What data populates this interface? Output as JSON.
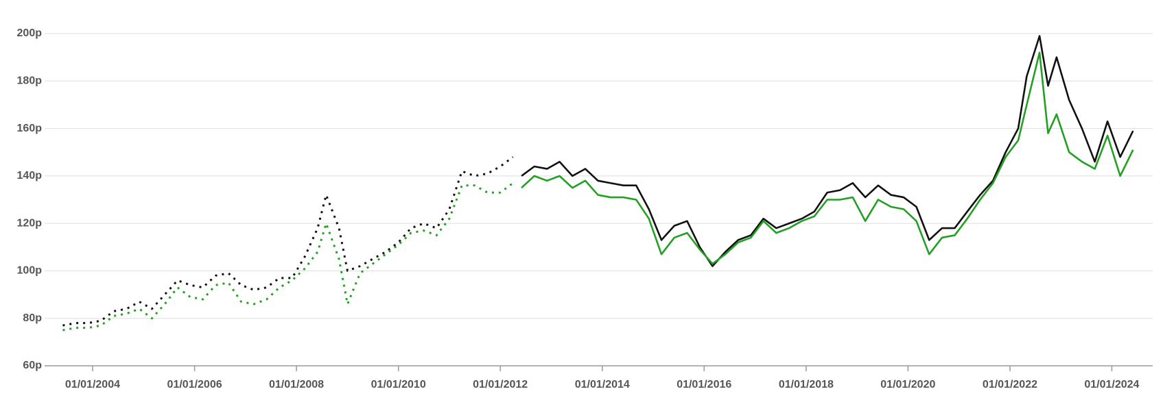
{
  "chart_data": {
    "type": "line",
    "xlim": [
      "2003-01-22",
      "2024-10-20"
    ],
    "xticks": [
      {
        "value": "2004-01-01",
        "label": "01/01/2004"
      },
      {
        "value": "2006-01-01",
        "label": "01/01/2006"
      },
      {
        "value": "2008-01-01",
        "label": "01/01/2008"
      },
      {
        "value": "2010-01-01",
        "label": "01/01/2010"
      },
      {
        "value": "2012-01-01",
        "label": "01/01/2012"
      },
      {
        "value": "2014-01-01",
        "label": "01/01/2014"
      },
      {
        "value": "2016-01-01",
        "label": "01/01/2016"
      },
      {
        "value": "2018-01-01",
        "label": "01/01/2018"
      },
      {
        "value": "2020-01-01",
        "label": "01/01/2020"
      },
      {
        "value": "2022-01-01",
        "label": "01/01/2022"
      },
      {
        "value": "2024-01-01",
        "label": "01/01/2024"
      }
    ],
    "ylim": [
      60,
      200
    ],
    "yticks": [
      {
        "value": 60,
        "label": "60p"
      },
      {
        "value": 80,
        "label": "80p"
      },
      {
        "value": 100,
        "label": "100p"
      },
      {
        "value": 120,
        "label": "120p"
      },
      {
        "value": 140,
        "label": "140p"
      },
      {
        "value": 160,
        "label": "160p"
      },
      {
        "value": 180,
        "label": "180p"
      },
      {
        "value": 200,
        "label": "200p"
      }
    ],
    "grid": true,
    "series": [
      {
        "color": "#111111",
        "style": "dotted",
        "x": [
          "2003-06-01",
          "2003-09-01",
          "2003-12-01",
          "2004-03-01",
          "2004-06-01",
          "2004-09-01",
          "2004-12-01",
          "2005-03-01",
          "2005-06-01",
          "2005-09-01",
          "2005-12-01",
          "2006-03-01",
          "2006-06-01",
          "2006-09-01",
          "2006-12-01",
          "2007-03-01",
          "2007-06-01",
          "2007-09-01",
          "2007-12-01",
          "2008-03-01",
          "2008-06-01",
          "2008-08-01",
          "2008-11-01",
          "2009-01-01",
          "2009-04-01",
          "2009-07-01",
          "2009-10-01",
          "2010-01-01",
          "2010-04-01",
          "2010-07-01",
          "2010-10-01",
          "2011-01-01",
          "2011-04-01",
          "2011-07-01",
          "2011-10-01",
          "2012-01-01",
          "2012-04-01"
        ],
        "values": [
          77,
          78,
          78,
          79,
          83,
          84,
          87,
          84,
          90,
          96,
          94,
          93,
          98,
          99,
          94,
          92,
          93,
          97,
          97,
          106,
          118,
          132,
          118,
          100,
          102,
          105,
          108,
          112,
          118,
          120,
          118,
          126,
          142,
          140,
          141,
          144,
          148
        ]
      },
      {
        "color": "#22a022",
        "style": "dotted",
        "x": [
          "2003-06-01",
          "2003-09-01",
          "2003-12-01",
          "2004-03-01",
          "2004-06-01",
          "2004-09-01",
          "2004-12-01",
          "2005-03-01",
          "2005-06-01",
          "2005-09-01",
          "2005-12-01",
          "2006-03-01",
          "2006-06-01",
          "2006-09-01",
          "2006-12-01",
          "2007-03-01",
          "2007-06-01",
          "2007-09-01",
          "2007-12-01",
          "2008-03-01",
          "2008-06-01",
          "2008-08-01",
          "2008-11-01",
          "2009-01-01",
          "2009-04-01",
          "2009-07-01",
          "2009-10-01",
          "2010-01-01",
          "2010-04-01",
          "2010-07-01",
          "2010-10-01",
          "2011-01-01",
          "2011-04-01",
          "2011-07-01",
          "2011-10-01",
          "2012-01-01",
          "2012-04-01"
        ],
        "values": [
          75,
          76,
          76,
          77,
          81,
          82,
          84,
          80,
          86,
          93,
          89,
          88,
          94,
          95,
          87,
          86,
          88,
          93,
          96,
          101,
          108,
          120,
          105,
          86,
          99,
          103,
          107,
          111,
          116,
          117,
          115,
          122,
          136,
          136,
          133,
          133,
          137
        ]
      },
      {
        "color": "#111111",
        "style": "solid",
        "x": [
          "2012-06-01",
          "2012-09-01",
          "2012-12-01",
          "2013-03-01",
          "2013-06-01",
          "2013-09-01",
          "2013-12-01",
          "2014-03-01",
          "2014-06-01",
          "2014-09-01",
          "2014-12-01",
          "2015-03-01",
          "2015-06-01",
          "2015-09-01",
          "2015-12-01",
          "2016-03-01",
          "2016-06-01",
          "2016-09-01",
          "2016-12-01",
          "2017-03-01",
          "2017-06-01",
          "2017-09-01",
          "2017-12-01",
          "2018-03-01",
          "2018-06-01",
          "2018-09-01",
          "2018-12-01",
          "2019-03-01",
          "2019-06-01",
          "2019-09-01",
          "2019-12-01",
          "2020-03-01",
          "2020-06-01",
          "2020-09-01",
          "2020-12-01",
          "2021-03-01",
          "2021-06-01",
          "2021-09-01",
          "2021-12-01",
          "2022-03-01",
          "2022-05-01",
          "2022-08-01",
          "2022-10-01",
          "2022-12-01",
          "2023-03-01",
          "2023-06-01",
          "2023-09-01",
          "2023-12-01",
          "2024-03-01",
          "2024-06-01"
        ],
        "values": [
          140,
          144,
          143,
          146,
          140,
          143,
          138,
          137,
          136,
          136,
          126,
          113,
          119,
          121,
          110,
          102,
          108,
          113,
          115,
          122,
          118,
          120,
          122,
          125,
          133,
          134,
          137,
          131,
          136,
          132,
          131,
          127,
          113,
          118,
          118,
          125,
          132,
          138,
          150,
          160,
          182,
          199,
          178,
          190,
          172,
          160,
          146,
          163,
          148,
          159
        ]
      },
      {
        "color": "#22a022",
        "style": "solid",
        "x": [
          "2012-06-01",
          "2012-09-01",
          "2012-12-01",
          "2013-03-01",
          "2013-06-01",
          "2013-09-01",
          "2013-12-01",
          "2014-03-01",
          "2014-06-01",
          "2014-09-01",
          "2014-12-01",
          "2015-03-01",
          "2015-06-01",
          "2015-09-01",
          "2015-12-01",
          "2016-03-01",
          "2016-06-01",
          "2016-09-01",
          "2016-12-01",
          "2017-03-01",
          "2017-06-01",
          "2017-09-01",
          "2017-12-01",
          "2018-03-01",
          "2018-06-01",
          "2018-09-01",
          "2018-12-01",
          "2019-03-01",
          "2019-06-01",
          "2019-09-01",
          "2019-12-01",
          "2020-03-01",
          "2020-06-01",
          "2020-09-01",
          "2020-12-01",
          "2021-03-01",
          "2021-06-01",
          "2021-09-01",
          "2021-12-01",
          "2022-03-01",
          "2022-05-01",
          "2022-08-01",
          "2022-10-01",
          "2022-12-01",
          "2023-03-01",
          "2023-06-01",
          "2023-09-01",
          "2023-12-01",
          "2024-03-01",
          "2024-06-01"
        ],
        "values": [
          135,
          140,
          138,
          140,
          135,
          138,
          132,
          131,
          131,
          130,
          122,
          107,
          114,
          116,
          109,
          103,
          107,
          112,
          114,
          121,
          116,
          118,
          121,
          123,
          130,
          130,
          131,
          121,
          130,
          127,
          126,
          121,
          107,
          114,
          115,
          122,
          130,
          137,
          148,
          155,
          170,
          192,
          158,
          166,
          150,
          146,
          143,
          157,
          140,
          151
        ]
      }
    ]
  }
}
